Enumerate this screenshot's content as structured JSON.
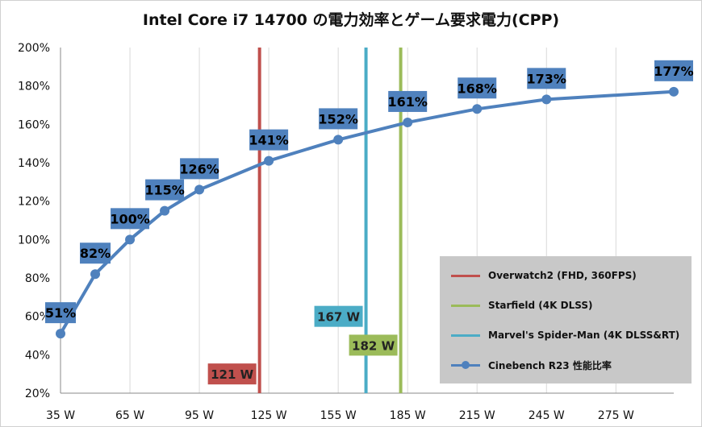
{
  "chart_data": {
    "type": "line",
    "title": "Intel Core i7 14700 の電力効率とゲーム要求電力(CPP)",
    "xlabel": "",
    "ylabel": "",
    "x_ticks": [
      "35 W",
      "65 W",
      "95 W",
      "125 W",
      "155 W",
      "185 W",
      "215 W",
      "245 W",
      "275 W"
    ],
    "y_ticks": [
      "20%",
      "40%",
      "60%",
      "80%",
      "100%",
      "120%",
      "140%",
      "160%",
      "180%",
      "200%"
    ],
    "xlim": [
      35,
      300
    ],
    "ylim": [
      20,
      200
    ],
    "grid": "vertical",
    "legend_position": "bottom-right",
    "series": [
      {
        "name": "Cinebench R23 性能比率",
        "color": "#4f81bd",
        "points": [
          {
            "x": 35,
            "y": 51,
            "label": "51%"
          },
          {
            "x": 50,
            "y": 82,
            "label": "82%"
          },
          {
            "x": 65,
            "y": 100,
            "label": "100%"
          },
          {
            "x": 80,
            "y": 115,
            "label": "115%"
          },
          {
            "x": 95,
            "y": 126,
            "label": "126%"
          },
          {
            "x": 125,
            "y": 141,
            "label": "141%"
          },
          {
            "x": 155,
            "y": 152,
            "label": "152%"
          },
          {
            "x": 185,
            "y": 161,
            "label": "161%"
          },
          {
            "x": 215,
            "y": 168,
            "label": "168%"
          },
          {
            "x": 245,
            "y": 173,
            "label": "173%"
          },
          {
            "x": 300,
            "y": 177,
            "label": "177%"
          }
        ]
      }
    ],
    "markers": [
      {
        "name": "Overwatch2 (FHD, 360FPS)",
        "x": 121,
        "label": "121 W",
        "color": "#c0504d",
        "label_y": 30
      },
      {
        "name": "Starfield (4K DLSS)",
        "x": 182,
        "label": "182 W",
        "color": "#9bbb59",
        "label_y": 45
      },
      {
        "name": "Marvel's Spider-Man (4K DLSS&RT)",
        "x": 167,
        "label": "167 W",
        "color": "#4bacc6",
        "label_y": 60
      }
    ]
  }
}
